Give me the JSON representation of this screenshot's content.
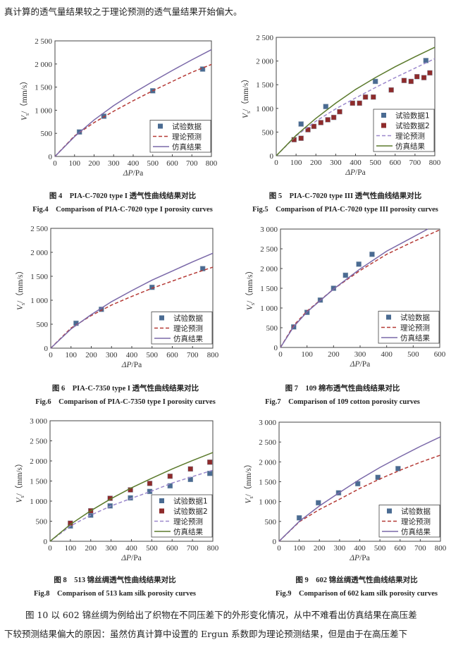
{
  "top_text": "真计算的透气量结果较之于理论预测的透气量结果开始偏大。",
  "bottom_text": [
    "图 10 以 602 锦丝绸为例给出了织物在不同压差下的外形变化情况，从中不难看出仿真结果在高压差",
    "下较预测结果偏大的原因：虽然仿真计算中设置的 Ergun 系数即为理论预测结果，但是由于在高压差下"
  ],
  "colors": {
    "exp": "#4a6b92",
    "exp2": "#8e2b2b",
    "theory_red": "#b53a36",
    "sim_purple": "#7a68a8",
    "sim_green": "#5b7a2c",
    "theory_purple": "#9b88cc"
  },
  "chart_data": [
    {
      "type": "line",
      "caption_cn": "图 4　PIA-C-7020 type I 透气性曲线结果对比",
      "caption_en": "Fig.4　Comparison of PIA-C-7020 type I porosity curves",
      "xlabel_var": "ΔP",
      "xlabel_unit": "/Pa",
      "ylabel_var": "V",
      "ylabel_sub": "s",
      "ylabel_unit": "/（mm/s）",
      "xlim": [
        0,
        800
      ],
      "ylim": [
        0,
        2500
      ],
      "xticks": [
        0,
        100,
        200,
        300,
        400,
        500,
        600,
        700,
        800
      ],
      "xtick_labels": [
        "0",
        "100",
        "200",
        "300",
        "400",
        "500",
        "600",
        "700",
        "800"
      ],
      "yticks": [
        0,
        500,
        1000,
        1500,
        2000,
        2500
      ],
      "ytick_labels": [
        "0",
        "500",
        "1 000",
        "1 500",
        "2 000",
        "2 500"
      ],
      "legend": "bottom-right",
      "series": [
        {
          "name": "试验数据",
          "type": "scatter",
          "color": "#4a6b92",
          "x": [
            125,
            250,
            500,
            755
          ],
          "y": [
            530,
            870,
            1420,
            1890
          ]
        },
        {
          "name": "理论预测",
          "type": "line",
          "style": "dashed",
          "color": "#b53a36",
          "x": [
            0,
            100,
            200,
            300,
            400,
            500,
            600,
            700,
            800
          ],
          "y": [
            0,
            445,
            733,
            978,
            1206,
            1420,
            1623,
            1821,
            1990
          ]
        },
        {
          "name": "仿真结果",
          "type": "line",
          "style": "solid",
          "color": "#7a68a8",
          "x": [
            0,
            100,
            200,
            300,
            400,
            500,
            600,
            700,
            800
          ],
          "y": [
            0,
            430,
            790,
            1100,
            1370,
            1620,
            1860,
            2090,
            2310
          ]
        }
      ]
    },
    {
      "type": "line",
      "caption_cn": "图 5　PIA-C-7020 type III 透气性曲线结果对比",
      "caption_en": "Fig.5　Comparison of PIA-C-7020 type III porosity curves",
      "xlabel_var": "ΔP",
      "xlabel_unit": "/Pa",
      "ylabel_var": "V",
      "ylabel_sub": "s",
      "ylabel_unit": "/（mm/s）",
      "xlim": [
        0,
        800
      ],
      "ylim": [
        0,
        2500
      ],
      "xticks": [
        0,
        100,
        200,
        300,
        400,
        500,
        600,
        700,
        800
      ],
      "xtick_labels": [
        "0",
        "100",
        "200",
        "300",
        "400",
        "500",
        "600",
        "700",
        "800"
      ],
      "yticks": [
        0,
        500,
        1000,
        1500,
        2000,
        2500
      ],
      "ytick_labels": [
        "0",
        "500",
        "1 000",
        "1 500",
        "2 000",
        "2 500"
      ],
      "legend": "bottom-right",
      "series": [
        {
          "name": "试验数据1",
          "type": "scatter",
          "color": "#4a6b92",
          "x": [
            125,
            250,
            500,
            755
          ],
          "y": [
            670,
            1040,
            1570,
            2010
          ]
        },
        {
          "name": "试验数据2",
          "type": "scatter",
          "color": "#8e2b2b",
          "x": [
            90,
            125,
            160,
            190,
            225,
            260,
            290,
            320,
            385,
            420,
            450,
            490,
            580,
            645,
            680,
            710,
            745,
            775
          ],
          "y": [
            340,
            370,
            550,
            620,
            700,
            760,
            810,
            930,
            1110,
            1110,
            1240,
            1240,
            1390,
            1590,
            1570,
            1670,
            1650,
            1750
          ]
        },
        {
          "name": "理论预测",
          "type": "line",
          "style": "dashed",
          "color": "#9b88cc",
          "x": [
            0,
            100,
            200,
            300,
            400,
            500,
            600,
            700,
            800
          ],
          "y": [
            0,
            420,
            730,
            990,
            1220,
            1440,
            1650,
            1850,
            2050
          ]
        },
        {
          "name": "仿真结果",
          "type": "line",
          "style": "solid",
          "color": "#5b7a2c",
          "x": [
            0,
            100,
            200,
            300,
            400,
            500,
            600,
            700,
            800
          ],
          "y": [
            0,
            430,
            790,
            1110,
            1400,
            1650,
            1880,
            2090,
            2290
          ]
        }
      ]
    },
    {
      "type": "line",
      "caption_cn": "图 6　PIA-C-7350 type I 透气性曲线结果对比",
      "caption_en": "Fig.6　Comparison of PIA-C-7350 type I porosity curves",
      "xlabel_var": "ΔP",
      "xlabel_unit": "/Pa",
      "ylabel_var": "V",
      "ylabel_sub": "s",
      "ylabel_unit": "/（mm/s）",
      "xlim": [
        0,
        800
      ],
      "ylim": [
        0,
        2500
      ],
      "xticks": [
        0,
        100,
        200,
        300,
        400,
        500,
        600,
        700,
        800
      ],
      "xtick_labels": [
        "0",
        "100",
        "200",
        "300",
        "400",
        "500",
        "600",
        "700",
        "800"
      ],
      "yticks": [
        0,
        500,
        1000,
        1500,
        2000,
        2500
      ],
      "ytick_labels": [
        "0",
        "500",
        "1 000",
        "1 500",
        "2 000",
        "2 500"
      ],
      "legend": "bottom-right",
      "series": [
        {
          "name": "试验数据",
          "type": "scatter",
          "color": "#4a6b92",
          "x": [
            125,
            250,
            500,
            750
          ],
          "y": [
            520,
            810,
            1270,
            1660
          ]
        },
        {
          "name": "理论预测",
          "type": "line",
          "style": "dashed",
          "color": "#b53a36",
          "x": [
            0,
            100,
            200,
            300,
            400,
            500,
            600,
            700,
            800
          ],
          "y": [
            0,
            420,
            680,
            900,
            1080,
            1250,
            1400,
            1550,
            1690
          ]
        },
        {
          "name": "仿真结果",
          "type": "line",
          "style": "solid",
          "color": "#7a68a8",
          "x": [
            0,
            100,
            200,
            300,
            400,
            500,
            600,
            700,
            800
          ],
          "y": [
            0,
            400,
            700,
            970,
            1200,
            1420,
            1610,
            1800,
            1980
          ]
        }
      ]
    },
    {
      "type": "line",
      "caption_cn": "图 7　109 棉布透气性曲线结果对比",
      "caption_en": "Fig.7　Comparison of 109 cotton porosity curves",
      "xlabel_var": "ΔP",
      "xlabel_unit": "/Pa",
      "ylabel_var": "V",
      "ylabel_sub": "s",
      "ylabel_unit": "/（mm/s）",
      "xlim": [
        0,
        600
      ],
      "ylim": [
        0,
        3000
      ],
      "xticks": [
        0,
        100,
        200,
        300,
        400,
        500,
        600
      ],
      "xtick_labels": [
        "0",
        "100",
        "200",
        "300",
        "400",
        "500",
        "600"
      ],
      "yticks": [
        0,
        500,
        1000,
        1500,
        2000,
        2500,
        3000
      ],
      "ytick_labels": [
        "0",
        "500",
        "1 000",
        "1 500",
        "2 000",
        "2 500",
        "3 000"
      ],
      "legend": "bottom-right",
      "series": [
        {
          "name": "试验数据",
          "type": "scatter",
          "color": "#4a6b92",
          "x": [
            50,
            100,
            150,
            200,
            245,
            295,
            345
          ],
          "y": [
            520,
            890,
            1200,
            1500,
            1830,
            2110,
            2360
          ]
        },
        {
          "name": "理论预测",
          "type": "line",
          "style": "dashed",
          "color": "#b53a36",
          "x": [
            0,
            50,
            100,
            200,
            300,
            400,
            500,
            600
          ],
          "y": [
            0,
            560,
            920,
            1480,
            1950,
            2360,
            2680,
            2980
          ]
        },
        {
          "name": "仿真结果",
          "type": "line",
          "style": "solid",
          "color": "#7a68a8",
          "x": [
            0,
            50,
            100,
            200,
            300,
            400,
            500,
            555
          ],
          "y": [
            0,
            530,
            900,
            1480,
            1990,
            2440,
            2800,
            3000
          ]
        }
      ]
    },
    {
      "type": "line",
      "caption_cn": "图 8　513 锦丝绸透气性曲线结果对比",
      "caption_en": "Fig.8　Comparison of 513 kam silk porosity curves",
      "xlabel_var": "ΔP",
      "xlabel_unit": "/Pa",
      "ylabel_var": "V",
      "ylabel_sub": "s",
      "ylabel_unit": "/（mm/s）",
      "xlim": [
        0,
        800
      ],
      "ylim": [
        0,
        3000
      ],
      "xticks": [
        0,
        100,
        200,
        300,
        400,
        500,
        600,
        700,
        800
      ],
      "xtick_labels": [
        "0",
        "100",
        "200",
        "300",
        "400",
        "500",
        "600",
        "700",
        "800"
      ],
      "yticks": [
        0,
        500,
        1000,
        1500,
        2000,
        2500,
        3000
      ],
      "ytick_labels": [
        "0",
        "500",
        "1 000",
        "1 500",
        "2 000",
        "2 500",
        "3 000"
      ],
      "legend": "bottom-right",
      "series": [
        {
          "name": "试验数据1",
          "type": "scatter",
          "color": "#4a6b92",
          "x": [
            100,
            200,
            295,
            395,
            490,
            590,
            690,
            785
          ],
          "y": [
            380,
            650,
            880,
            1080,
            1240,
            1380,
            1540,
            1690
          ]
        },
        {
          "name": "试验数据2",
          "type": "scatter",
          "color": "#8e2b2b",
          "x": [
            100,
            200,
            295,
            395,
            490,
            590,
            690,
            785
          ],
          "y": [
            450,
            760,
            1070,
            1280,
            1440,
            1620,
            1800,
            1970
          ]
        },
        {
          "name": "理论预测",
          "type": "line",
          "style": "dashed",
          "color": "#9b88cc",
          "x": [
            0,
            100,
            200,
            300,
            400,
            500,
            600,
            700,
            800
          ],
          "y": [
            0,
            380,
            650,
            880,
            1070,
            1250,
            1450,
            1610,
            1770
          ]
        },
        {
          "name": "仿真结果",
          "type": "line",
          "style": "solid",
          "color": "#5b7a2c",
          "x": [
            0,
            100,
            200,
            300,
            400,
            500,
            600,
            700,
            800
          ],
          "y": [
            0,
            420,
            760,
            1060,
            1330,
            1570,
            1800,
            2010,
            2210
          ]
        }
      ]
    },
    {
      "type": "line",
      "caption_cn": "图 9　602 锦丝绸透气性曲线结果对比",
      "caption_en": "Fig.9　Comparison of 602 kam silk porosity curves",
      "xlabel_var": "ΔP",
      "xlabel_unit": "/Pa",
      "ylabel_var": "V",
      "ylabel_sub": "s",
      "ylabel_unit": "/（mm/s）",
      "xlim": [
        0,
        800
      ],
      "ylim": [
        0,
        3000
      ],
      "xticks": [
        0,
        100,
        200,
        300,
        400,
        500,
        600,
        700,
        800
      ],
      "xtick_labels": [
        "0",
        "100",
        "200",
        "300",
        "400",
        "500",
        "600",
        "700",
        "800"
      ],
      "yticks": [
        0,
        500,
        1000,
        1500,
        2000,
        2500,
        3000
      ],
      "ytick_labels": [
        "0",
        "500",
        "1 000",
        "1 500",
        "2 000",
        "2 500",
        "3 000"
      ],
      "legend": "bottom-right",
      "series": [
        {
          "name": "试验数据",
          "type": "scatter",
          "color": "#4a6b92",
          "x": [
            100,
            195,
            295,
            390,
            490,
            590
          ],
          "y": [
            590,
            970,
            1220,
            1450,
            1610,
            1830
          ]
        },
        {
          "name": "理论预测",
          "type": "line",
          "style": "dashed",
          "color": "#b53a36",
          "x": [
            0,
            100,
            200,
            300,
            400,
            500,
            600,
            700,
            800
          ],
          "y": [
            0,
            490,
            800,
            1060,
            1330,
            1570,
            1790,
            1990,
            2170
          ]
        },
        {
          "name": "仿真结果",
          "type": "line",
          "style": "solid",
          "color": "#7a68a8",
          "x": [
            0,
            100,
            200,
            300,
            400,
            500,
            600,
            700,
            800
          ],
          "y": [
            0,
            500,
            890,
            1230,
            1560,
            1860,
            2130,
            2390,
            2630
          ]
        }
      ]
    }
  ]
}
